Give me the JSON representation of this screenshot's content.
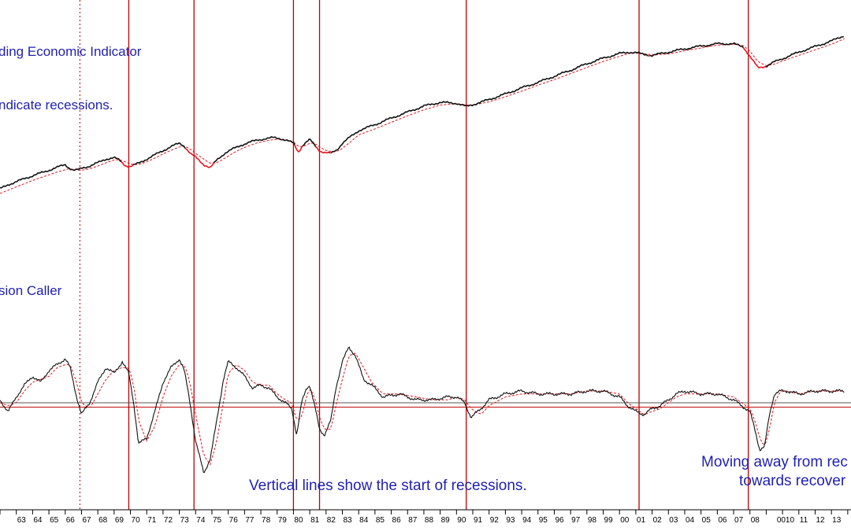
{
  "annotations": {
    "top_title": "ding Economic Indicator",
    "top_note": "ndicate recessions.",
    "bottom_title": "sion Caller",
    "recession_note": "Vertical lines show the start of recessions.",
    "recovery_note_1": "Moving away from rec",
    "recovery_note_2": "towards recover"
  },
  "chart_data": [
    {
      "type": "line",
      "title": "ding Economic Indicator",
      "x": [
        1962.0,
        1962.5,
        1963.0,
        1963.5,
        1964.0,
        1964.5,
        1965.0,
        1965.5,
        1966.0,
        1966.2,
        1966.5,
        1966.8,
        1967.0,
        1967.5,
        1968.0,
        1968.5,
        1969.0,
        1969.3,
        1969.7,
        1970.0,
        1970.5,
        1971.0,
        1971.5,
        1972.0,
        1972.5,
        1973.0,
        1973.3,
        1973.7,
        1974.0,
        1974.5,
        1974.9,
        1975.3,
        1975.8,
        1976.3,
        1976.8,
        1977.3,
        1977.8,
        1978.3,
        1978.8,
        1979.2,
        1979.6,
        1980.0,
        1980.3,
        1980.6,
        1981.0,
        1981.3,
        1981.6,
        1981.9,
        1982.3,
        1982.7,
        1983.0,
        1983.5,
        1984.0,
        1985.0,
        1986.0,
        1987.0,
        1988.0,
        1989.0,
        1990.0,
        1990.6,
        1991.0,
        1992.0,
        1993.0,
        1994.0,
        1995.0,
        1996.0,
        1997.0,
        1998.0,
        1999.0,
        2000.0,
        2000.6,
        2001.0,
        2001.5,
        2002.0,
        2003.0,
        2004.0,
        2005.0,
        2006.0,
        2007.0,
        2007.6,
        2008.0,
        2008.5,
        2009.0,
        2009.5,
        2010.0,
        2011.0,
        2012.0,
        2013.0,
        2013.8
      ],
      "series": [
        {
          "values": [
            0.3,
            0.39,
            0.45,
            0.52,
            0.58,
            0.64,
            0.7,
            0.76,
            0.82,
            0.76,
            0.7,
            0.71,
            0.74,
            0.79,
            0.86,
            0.94,
            0.97,
            0.92,
            0.8,
            0.78,
            0.85,
            0.94,
            1.03,
            1.12,
            1.21,
            1.28,
            1.22,
            1.05,
            0.98,
            0.82,
            0.75,
            0.92,
            1.07,
            1.16,
            1.24,
            1.3,
            1.35,
            1.38,
            1.4,
            1.38,
            1.34,
            1.28,
            1.09,
            1.25,
            1.36,
            1.24,
            1.12,
            1.08,
            1.06,
            1.15,
            1.28,
            1.42,
            1.55,
            1.68,
            1.82,
            1.95,
            2.08,
            2.16,
            2.14,
            2.07,
            2.11,
            2.22,
            2.34,
            2.47,
            2.59,
            2.72,
            2.85,
            2.99,
            3.11,
            3.21,
            3.24,
            3.23,
            3.19,
            3.17,
            3.24,
            3.31,
            3.37,
            3.42,
            3.42,
            3.35,
            3.15,
            2.9,
            2.94,
            3.03,
            3.1,
            3.24,
            3.36,
            3.48,
            3.6
          ]
        },
        {
          "values": [
            0.2,
            0.27,
            0.34,
            0.41,
            0.48,
            0.54,
            0.6,
            0.66,
            0.71,
            0.73,
            0.72,
            0.7,
            0.7,
            0.73,
            0.79,
            0.86,
            0.92,
            0.93,
            0.88,
            0.83,
            0.82,
            0.88,
            0.96,
            1.05,
            1.13,
            1.2,
            1.22,
            1.15,
            1.06,
            0.94,
            0.84,
            0.86,
            0.96,
            1.07,
            1.16,
            1.23,
            1.29,
            1.33,
            1.36,
            1.37,
            1.35,
            1.31,
            1.21,
            1.21,
            1.28,
            1.28,
            1.2,
            1.14,
            1.1,
            1.1,
            1.17,
            1.31,
            1.46,
            1.59,
            1.73,
            1.87,
            2.0,
            2.1,
            2.13,
            2.1,
            2.1,
            2.17,
            2.28,
            2.4,
            2.53,
            2.65,
            2.78,
            2.91,
            3.04,
            3.15,
            3.21,
            3.22,
            3.21,
            3.18,
            3.2,
            3.27,
            3.33,
            3.39,
            3.41,
            3.38,
            3.26,
            3.03,
            2.95,
            2.98,
            3.05,
            3.17,
            3.29,
            3.41,
            3.53
          ]
        }
      ]
    },
    {
      "type": "line",
      "title": "sion Caller",
      "x": [
        1962.0,
        1962.5,
        1963.0,
        1963.5,
        1964.0,
        1964.5,
        1965.0,
        1965.5,
        1966.0,
        1966.3,
        1966.7,
        1967.0,
        1967.5,
        1968.0,
        1968.5,
        1969.0,
        1969.5,
        1969.9,
        1970.2,
        1970.5,
        1971.0,
        1971.5,
        1972.0,
        1972.5,
        1973.0,
        1973.3,
        1973.6,
        1974.0,
        1974.5,
        1974.9,
        1975.3,
        1975.7,
        1976.0,
        1976.5,
        1977.0,
        1977.5,
        1978.0,
        1978.5,
        1979.0,
        1979.5,
        1979.9,
        1980.2,
        1980.5,
        1980.8,
        1981.0,
        1981.3,
        1981.6,
        1981.9,
        1982.3,
        1982.6,
        1983.0,
        1983.4,
        1983.8,
        1984.3,
        1984.8,
        1985.5,
        1986.5,
        1987.5,
        1988.5,
        1989.5,
        1990.0,
        1990.5,
        1990.9,
        1991.5,
        1992.0,
        1993.0,
        1994.0,
        1995.0,
        1996.0,
        1997.0,
        1998.0,
        1999.0,
        2000.0,
        2000.5,
        2001.0,
        2001.5,
        2002.0,
        2002.5,
        2003.0,
        2003.5,
        2004.0,
        2005.0,
        2006.0,
        2007.0,
        2007.5,
        2008.0,
        2008.3,
        2008.6,
        2008.9,
        2009.2,
        2009.5,
        2009.9,
        2010.3,
        2011.0,
        2012.0,
        2013.0,
        2013.8
      ],
      "series": [
        {
          "values": [
            0.1,
            -0.3,
            0.2,
            0.6,
            0.9,
            0.7,
            1.1,
            1.3,
            1.5,
            1.2,
            0.2,
            -0.4,
            0.0,
            0.7,
            1.2,
            1.0,
            1.4,
            1.0,
            0.0,
            -1.4,
            -1.2,
            -0.3,
            0.7,
            1.2,
            1.5,
            1.1,
            0.2,
            -1.3,
            -2.4,
            -1.9,
            -0.6,
            0.8,
            1.4,
            1.2,
            0.9,
            0.5,
            0.6,
            0.5,
            0.2,
            0.0,
            -0.2,
            -1.1,
            0.0,
            0.5,
            0.6,
            -0.1,
            -0.9,
            -1.1,
            -0.6,
            0.5,
            1.4,
            1.9,
            1.6,
            0.8,
            0.6,
            0.2,
            0.3,
            0.1,
            0.1,
            0.2,
            0.2,
            0.0,
            -0.5,
            -0.2,
            0.1,
            0.3,
            0.4,
            0.3,
            0.3,
            0.3,
            0.4,
            0.4,
            0.2,
            -0.1,
            -0.3,
            -0.4,
            -0.2,
            -0.1,
            0.1,
            0.3,
            0.4,
            0.3,
            0.3,
            0.1,
            -0.1,
            -0.3,
            -0.9,
            -1.6,
            -1.5,
            -0.4,
            0.3,
            0.4,
            0.4,
            0.3,
            0.4,
            0.4,
            0.4
          ]
        },
        {
          "values": [
            0.0,
            -0.1,
            0.0,
            0.4,
            0.7,
            0.8,
            0.9,
            1.2,
            1.3,
            1.3,
            0.7,
            0.0,
            -0.2,
            0.3,
            0.8,
            1.1,
            1.2,
            1.2,
            0.6,
            -0.6,
            -1.3,
            -0.8,
            0.2,
            0.9,
            1.3,
            1.3,
            0.8,
            -0.4,
            -1.8,
            -2.1,
            -1.3,
            0.0,
            1.0,
            1.3,
            1.1,
            0.7,
            0.6,
            0.6,
            0.3,
            0.1,
            0.0,
            -0.6,
            -0.5,
            0.2,
            0.5,
            0.2,
            -0.5,
            -0.9,
            -0.9,
            -0.1,
            0.8,
            1.6,
            1.7,
            1.2,
            0.7,
            0.3,
            0.3,
            0.2,
            0.1,
            0.1,
            0.2,
            0.1,
            -0.2,
            -0.4,
            -0.1,
            0.2,
            0.3,
            0.3,
            0.3,
            0.3,
            0.4,
            0.4,
            0.3,
            0.0,
            -0.2,
            -0.4,
            -0.3,
            -0.2,
            0.0,
            0.2,
            0.3,
            0.3,
            0.3,
            0.2,
            0.0,
            -0.2,
            -0.6,
            -1.2,
            -1.5,
            -0.9,
            0.0,
            0.4,
            0.4,
            0.3,
            0.4,
            0.4,
            0.4
          ]
        }
      ],
      "reference_levels": [
        0.0,
        -0.15
      ]
    }
  ],
  "recession_starts": [
    1969.9,
    1973.9,
    1980.0,
    1981.6,
    1990.6,
    2001.2,
    2007.9
  ],
  "dotted_marker": 1966.9,
  "x_tick_labels": [
    "63",
    "64",
    "65",
    "66",
    "67",
    "68",
    "69",
    "70",
    "71",
    "72",
    "73",
    "74",
    "75",
    "76",
    "77",
    "78",
    "79",
    "80",
    "81",
    "82",
    "83",
    "84",
    "85",
    "86",
    "87",
    "88",
    "89",
    "90",
    "91",
    "92",
    "93",
    "94",
    "95",
    "96",
    "97",
    "98",
    "99",
    "00",
    "01",
    "02",
    "03",
    "04",
    "05",
    "06",
    "07",
    "08",
    "0010",
    "11",
    "12",
    "13"
  ],
  "x_tick_years": [
    1963,
    1964,
    1965,
    1966,
    1967,
    1968,
    1969,
    1970,
    1971,
    1972,
    1973,
    1974,
    1975,
    1976,
    1977,
    1978,
    1979,
    1980,
    1981,
    1982,
    1983,
    1984,
    1985,
    1986,
    1987,
    1988,
    1989,
    1990,
    1991,
    1992,
    1993,
    1994,
    1995,
    1996,
    1997,
    1998,
    1999,
    2000,
    2001,
    2002,
    2003,
    2004,
    2005,
    2006,
    2007,
    2008,
    2009.6,
    2011,
    2012,
    2013
  ],
  "colors": {
    "primary": "#111111",
    "recession": "#e8141e",
    "average": "#e8141e",
    "vline": "#c00000",
    "annotation": "#1f1fb4",
    "reference": "#555555"
  }
}
